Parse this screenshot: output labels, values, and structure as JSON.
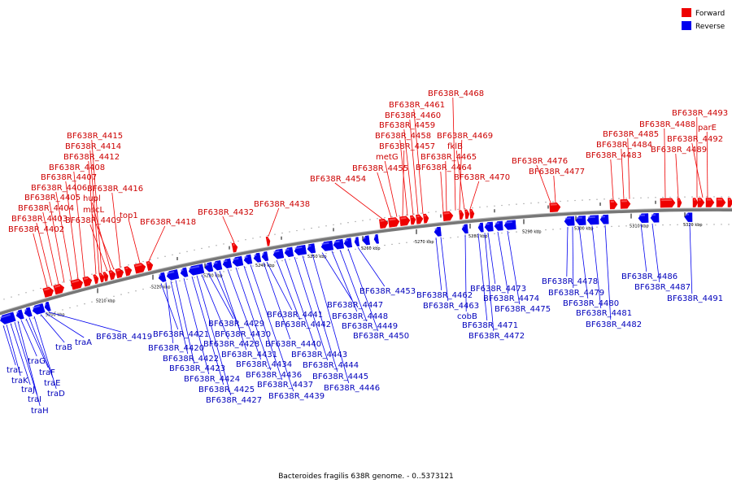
{
  "legend": [
    {
      "label": "Forward",
      "color": "#ee0000"
    },
    {
      "label": "Reverse",
      "color": "#0000ee"
    }
  ],
  "caption": "Bacteroides fragilis 638R genome. - 0..5373121",
  "ticks": [
    "5200 kbp",
    "5210 kbp",
    "5220 kbp",
    "5230 kbp",
    "5240 kbp",
    "5250 kbp",
    "5260 kbp",
    "5270 kbp",
    "5280 kbp",
    "5290 kbp",
    "5300 kbp",
    "5310 kbp",
    "5320 kbp"
  ],
  "forward_labels": [
    "BF638R_4402",
    "BF638R_4403",
    "BF638R_4404",
    "BF638R_4405",
    "BF638R_4406",
    "BF638R_4407",
    "BF638R_4408",
    "BF638R_4412",
    "BF638R_4414",
    "BF638R_4415",
    "hupl",
    "mscL",
    "BF638R_4409",
    "BF638R_4416",
    "top1",
    "BF638R_4418",
    "BF638R_4432",
    "BF638R_4438",
    "BF638R_4454",
    "BF638R_4455",
    "metG",
    "BF638R_4457",
    "BF638R_4458",
    "BF638R_4459",
    "BF638R_4460",
    "BF638R_4461",
    "BF638R_4468",
    "BF638R_4469",
    "fklB",
    "BF638R_4465",
    "BF638R_4464",
    "BF638R_4470",
    "BF638R_4476",
    "BF638R_4477",
    "BF638R_4483",
    "BF638R_4484",
    "BF638R_4485",
    "BF638R_4488",
    "BF638R_4489",
    "BF638R_4493",
    "parE",
    "BF638R_4492"
  ],
  "reverse_labels": [
    "traL",
    "traK",
    "traJ",
    "traI",
    "traH",
    "traG",
    "traF",
    "traE",
    "traD",
    "traB",
    "traA",
    "BF638R_4419",
    "BF638R_4421",
    "BF638R_4420",
    "BF638R_4422",
    "BF638R_4423",
    "BF638R_4424",
    "BF638R_4425",
    "BF638R_4427",
    "BF638R_4429",
    "BF638R_4430",
    "BF638R_4428",
    "BF638R_4431",
    "BF638R_4434",
    "BF638R_4436",
    "BF638R_4437",
    "BF638R_4439",
    "BF638R_4441",
    "BF638R_4442",
    "BF638R_4440",
    "BF638R_4443",
    "BF638R_4444",
    "BF638R_4445",
    "BF638R_4446",
    "BF638R_4447",
    "BF638R_4448",
    "BF638R_4449",
    "BF638R_4450",
    "BF638R_4453",
    "BF638R_4462",
    "BF638R_4463",
    "cobB",
    "BF638R_4471",
    "BF638R_4472",
    "BF638R_4473",
    "BF638R_4474",
    "BF638R_4475",
    "BF638R_4478",
    "BF638R_4479",
    "BF638R_4480",
    "BF638R_4481",
    "BF638R_4482",
    "BF638R_4486",
    "BF638R_4487",
    "BF638R_4491"
  ]
}
